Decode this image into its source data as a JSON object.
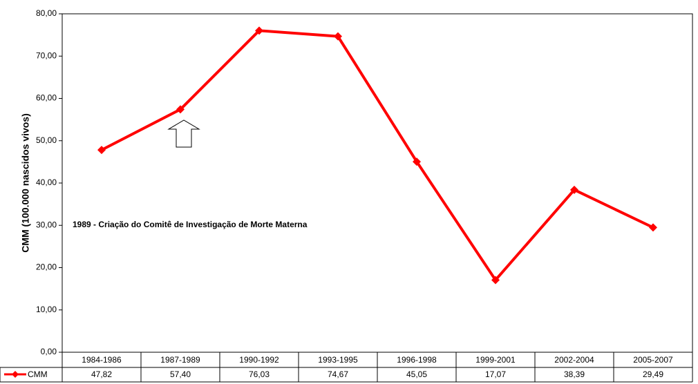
{
  "chart_data": {
    "type": "line",
    "y_label": "CMM (100.000 nascidos vivos)",
    "annotation": "1989 - Criação do Comitê de Investigação de Morte Materna",
    "categories": [
      "1984-1986",
      "1987-1989",
      "1990-1992",
      "1993-1995",
      "1996-1998",
      "1999-2001",
      "2002-2004",
      "2005-2007"
    ],
    "series": [
      {
        "name": "CMM",
        "color": "#ff0000",
        "values": [
          47.82,
          57.4,
          76.03,
          74.67,
          45.05,
          17.07,
          38.39,
          29.49
        ],
        "value_labels": [
          "47,82",
          "57,40",
          "76,03",
          "74,67",
          "45,05",
          "17,07",
          "38,39",
          "29,49"
        ]
      }
    ],
    "ylim": [
      0,
      80
    ],
    "yticks": [
      {
        "value": 0,
        "label": "0,00"
      },
      {
        "value": 10,
        "label": "10,00"
      },
      {
        "value": 20,
        "label": "20,00"
      },
      {
        "value": 30,
        "label": "30,00"
      },
      {
        "value": 40,
        "label": "40,00"
      },
      {
        "value": 50,
        "label": "50,00"
      },
      {
        "value": 60,
        "label": "60,00"
      },
      {
        "value": 70,
        "label": "70,00"
      },
      {
        "value": 80,
        "label": "80,00"
      }
    ]
  }
}
